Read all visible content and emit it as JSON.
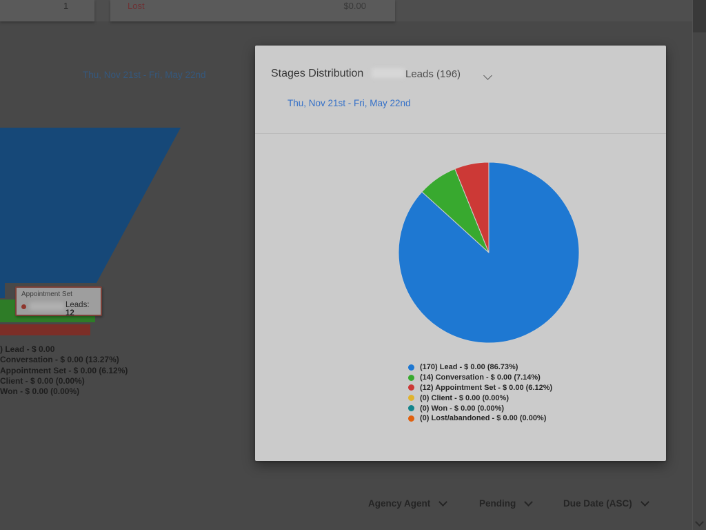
{
  "background": {
    "summary_row": {
      "count": "1",
      "stage_label": "Lost",
      "value": "$0.00"
    },
    "date_range": "Thu, Nov 21st - Fri, May 22nd",
    "filters": [
      {
        "label": "Agency Agent"
      },
      {
        "label": "Pending"
      },
      {
        "label": "Due Date (ASC)"
      }
    ]
  },
  "modal": {
    "title": "Stages Distribution",
    "dropdown_label": "Leads (196)",
    "date_range": "Thu, Nov 21st - Fri, May 22nd"
  },
  "colors": {
    "modal_bg": "#cbcbcb",
    "page_dimmed_bg": "#484848",
    "link_blue": "#3470c8",
    "pie_slice_stroke": "#cfcfcf"
  },
  "chart_data": [
    {
      "type": "pie",
      "title": "Stages Distribution",
      "dataset_label": "Leads (196)",
      "date_range": "Thu, Nov 21st - Fri, May 22nd",
      "legend_position": "bottom-center",
      "start_angle_deg": 0,
      "slices": [
        {
          "label": "Lead",
          "count": 170,
          "value_text": "$ 0.00",
          "percent": 86.73,
          "color": "#1e78d2",
          "legend_text": "(170) Lead - $ 0.00 (86.73%)"
        },
        {
          "label": "Conversation",
          "count": 14,
          "value_text": "$ 0.00",
          "percent": 7.14,
          "color": "#38a92f",
          "legend_text": "(14) Conversation - $ 0.00 (7.14%)"
        },
        {
          "label": "Appointment Set",
          "count": 12,
          "value_text": "$ 0.00",
          "percent": 6.12,
          "color": "#cc3936",
          "legend_text": "(12) Appointment Set - $ 0.00 (6.12%)"
        },
        {
          "label": "Client",
          "count": 0,
          "value_text": "$ 0.00",
          "percent": 0,
          "color": "#e0b32e",
          "legend_text": "(0) Client - $ 0.00 (0.00%)"
        },
        {
          "label": "Won",
          "count": 0,
          "value_text": "$ 0.00",
          "percent": 0,
          "color": "#13858d",
          "legend_text": "(0) Won - $ 0.00 (0.00%)"
        },
        {
          "label": "Lost/abandoned",
          "count": 0,
          "value_text": "$ 0.00",
          "percent": 0,
          "color": "#e0610f",
          "legend_text": "(0) Lost/abandoned - $ 0.00 (0.00%)"
        }
      ]
    },
    {
      "type": "funnel",
      "partially_visible": true,
      "stages": [
        {
          "label": "Lead",
          "color": "#164878",
          "legend_text": ") Lead - $ 0.00"
        },
        {
          "label": "Conversation",
          "color": "#2e7c27",
          "legend_text": "Conversation - $ 0.00 (13.27%)"
        },
        {
          "label": "Appointment Set",
          "color": "#7c2e27",
          "legend_text": "Appointment Set - $ 0.00 (6.12%)"
        },
        {
          "label": "Client",
          "color": "",
          "legend_text": "Client - $ 0.00 (0.00%)"
        },
        {
          "label": "Won",
          "color": "",
          "legend_text": "Won - $ 0.00 (0.00%)"
        }
      ],
      "tooltip": {
        "title": "Appointment Set",
        "series": "Leads:",
        "value": "12"
      }
    }
  ]
}
